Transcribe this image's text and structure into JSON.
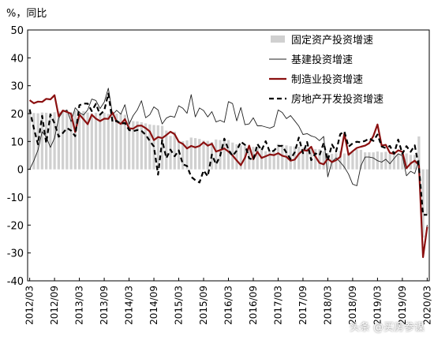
{
  "unit_label": "%，同比",
  "watermark": "头条 @买房参谋",
  "chart_data": {
    "type": "bar",
    "ylim": [
      -40,
      50
    ],
    "yticks": [
      -40,
      -30,
      -20,
      -10,
      0,
      10,
      20,
      30,
      40,
      50
    ],
    "xtick_labels": [
      "2012/03",
      "2012/09",
      "2013/03",
      "2013/09",
      "2014/03",
      "2014/09",
      "2015/03",
      "2015/09",
      "2016/03",
      "2016/09",
      "2017/03",
      "2017/09",
      "2018/03",
      "2018/09",
      "2019/03",
      "2019/09",
      "2020/03"
    ],
    "grid": false,
    "legend_position": "top-right",
    "colors": {
      "fixed_asset": "#d0d0d0",
      "infrastructure": "#202020",
      "manufacturing": "#8b1010",
      "real_estate": "#000000"
    },
    "series": [
      {
        "name": "固定资产投资增速",
        "style": "bar",
        "values": [
          20.9,
          20.2,
          20.1,
          20.4,
          20.3,
          20.2,
          20.5,
          20.8,
          20.7,
          20.6,
          20.6,
          21.2,
          20.6,
          20.9,
          20.4,
          20.1,
          20.3,
          20.2,
          20.3,
          19.9,
          20.2,
          20.0,
          20.0,
          19.6,
          17.6,
          17.3,
          17.2,
          16.9,
          16.5,
          16.1,
          15.9,
          15.8,
          15.6,
          13.9,
          12.0,
          13.5,
          10.2,
          10.1,
          10.4,
          11.4,
          11.2,
          10.9,
          10.3,
          10.2,
          9.8,
          10.7,
          10.5,
          10.1,
          10.5,
          9.6,
          9.0,
          8.6,
          8.3,
          8.1,
          8.1,
          8.1,
          7.9,
          6.5,
          6.3,
          6.3,
          9.1,
          8.9,
          8.6,
          8.3,
          8.2,
          8.1,
          7.8,
          7.7,
          7.5,
          7.3,
          7.2,
          6.5,
          5.8,
          5.6,
          5.8,
          6.6,
          5.7,
          6.1,
          6.3,
          7.2,
          7.0,
          6.1,
          6.1,
          6.1,
          6.4,
          6.1,
          6.3,
          5.6,
          5.8,
          5.4,
          5.5,
          5.7,
          5.2,
          5.2,
          11.8,
          -24.5,
          -16.1
        ]
      },
      {
        "name": "基建投资增速",
        "style": "line",
        "values": [
          0,
          3.1,
          6.9,
          13.5,
          11.6,
          7.9,
          11.2,
          18.4,
          20.7,
          21.3,
          17.1,
          22.1,
          20.4,
          19.5,
          21.3,
          25.2,
          24.7,
          21.8,
          24.1,
          29.1,
          19.6,
          21.2,
          19.8,
          23.2,
          16.2,
          19.3,
          21.4,
          24.6,
          18.5,
          19.6,
          22.4,
          21.3,
          16.3,
          18.4,
          19.1,
          18.7,
          22.8,
          21.9,
          20.1,
          26.8,
          18.8,
          22.0,
          21.1,
          18.8,
          20.7,
          17.0,
          17.6,
          16.9,
          24.3,
          23.6,
          17.4,
          22.2,
          16.0,
          16.3,
          18.5,
          15.6,
          15.6,
          15.2,
          14.8,
          15.4,
          21.3,
          20.4,
          18.2,
          19.3,
          17.4,
          15.5,
          12.5,
          12.8,
          12.0,
          11.5,
          10.3,
          11.8,
          -2.7,
          2.8,
          4.1,
          2.6,
          0.8,
          -1.7,
          -5.3,
          -5.9,
          1.3,
          4.4,
          4.4,
          4.1,
          3.1,
          2.6,
          3.6,
          2.0,
          3.9,
          5.6,
          4.9,
          -2.3,
          -0.7,
          -1.5,
          3.3,
          -30.3,
          -19.9
        ]
      },
      {
        "name": "制造业投资增速",
        "style": "line",
        "values": [
          24.8,
          23.7,
          24.3,
          24.2,
          25.3,
          25.1,
          26.6,
          19.0,
          21.1,
          20.6,
          19.9,
          13.4,
          19.7,
          18.0,
          16.2,
          19.6,
          18.2,
          17.3,
          18.2,
          18.1,
          20.4,
          17.2,
          16.3,
          18.0,
          14.7,
          14.6,
          15.6,
          15.7,
          14.8,
          13.6,
          10.5,
          11.6,
          11.2,
          12.3,
          13.5,
          12.6,
          9.9,
          9.1,
          7.5,
          8.4,
          7.9,
          8.4,
          9.7,
          8.5,
          9.2,
          6.4,
          6.9,
          7.5,
          6.4,
          5.0,
          3.2,
          1.5,
          4.2,
          8.5,
          3.6,
          6.3,
          4.1,
          4.7,
          5.3,
          5.1,
          5.8,
          4.9,
          4.5,
          3.1,
          3.5,
          5.5,
          6.9,
          6.7,
          8.1,
          4.6,
          2.3,
          1.8,
          3.8,
          2.6,
          3.3,
          4.5,
          12.8,
          5.2,
          6.5,
          7.7,
          8.1,
          8.5,
          9.4,
          12.0,
          16.1,
          8.5,
          8.8,
          5.9,
          5.6,
          6.8,
          6.3,
          0.4,
          2.1,
          3.1,
          1.5,
          -31.5,
          -20.6
        ]
      },
      {
        "name": "房地产开发投资增速",
        "style": "dashed",
        "values": [
          21.5,
          14.7,
          9.0,
          19.2,
          9.4,
          19.7,
          16.5,
          11.7,
          13.0,
          14.8,
          13.9,
          11.9,
          23.0,
          23.6,
          23.6,
          20.9,
          23.5,
          19.6,
          21.1,
          27.2,
          17.0,
          17.4,
          16.4,
          16.6,
          14.1,
          13.7,
          14.1,
          13.8,
          12.4,
          10.2,
          8.2,
          -1.9,
          10.5,
          4.0,
          7.1,
          4.7,
          6.8,
          1.8,
          1.2,
          -2.7,
          -3.9,
          -4.7,
          -0.4,
          -2.5,
          5.3,
          1.8,
          4.8,
          11.0,
          7.1,
          4.8,
          6.7,
          9.9,
          8.8,
          4.0,
          3.3,
          9.1,
          6.8,
          10.1,
          6.2,
          6.7,
          8.4,
          8.4,
          6.0,
          3.7,
          6.1,
          11.4,
          5.8,
          9.8,
          3.3,
          5.7,
          5.0,
          9.5,
          3.2,
          8.9,
          6.4,
          12.6,
          13.6,
          8.1,
          9.3,
          9.9,
          9.7,
          10.2,
          11.1,
          10.2,
          12.5,
          8.2,
          7.6,
          8.4,
          5.6,
          10.7,
          5.6,
          8.3,
          6.3,
          8.6,
          0.7,
          -16.3,
          -16.3
        ]
      }
    ]
  }
}
